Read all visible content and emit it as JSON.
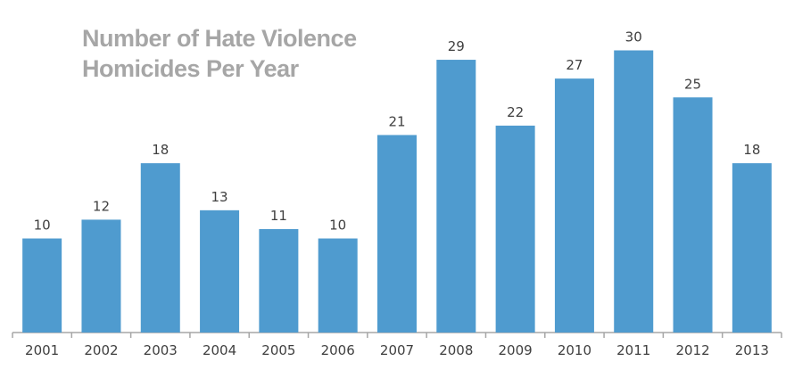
{
  "chart_data": {
    "type": "bar",
    "title_lines": [
      "Number of Hate Violence",
      "Homicides Per Year"
    ],
    "categories": [
      "2001",
      "2002",
      "2003",
      "2004",
      "2005",
      "2006",
      "2007",
      "2008",
      "2009",
      "2010",
      "2011",
      "2012",
      "2013"
    ],
    "values": [
      10,
      12,
      18,
      13,
      11,
      10,
      21,
      29,
      22,
      27,
      30,
      25,
      18
    ],
    "xlabel": "",
    "ylabel": "",
    "ylim": [
      0,
      30
    ],
    "grid": false,
    "data_labels": true,
    "bar_color": "#4f9bcf",
    "axis_color": "#a6a6a6",
    "label_color": "#404040",
    "title_color": "#a6a6a6"
  }
}
